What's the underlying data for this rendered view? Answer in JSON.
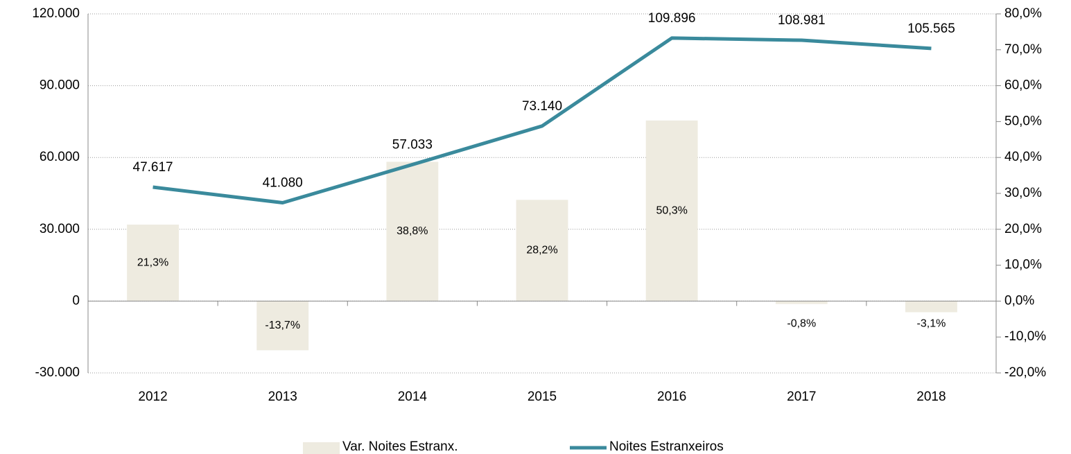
{
  "chart_data": {
    "type": "combo",
    "categories": [
      "2012",
      "2013",
      "2014",
      "2015",
      "2016",
      "2017",
      "2018"
    ],
    "series": [
      {
        "name": "Var. Noites Estranx.",
        "type": "bar",
        "axis": "y2",
        "color": "#eeebe0",
        "values": [
          21.3,
          -13.7,
          38.8,
          28.2,
          50.3,
          -0.8,
          -3.1
        ],
        "value_labels": [
          "21,3%",
          "-13,7%",
          "38,8%",
          "28,2%",
          "50,3%",
          "-0,8%",
          "-3,1%"
        ]
      },
      {
        "name": "Noites Estranxeiros",
        "type": "line",
        "axis": "y",
        "color": "#3a8a9c",
        "values": [
          47617,
          41080,
          57033,
          73140,
          109896,
          108981,
          105565
        ],
        "value_labels": [
          "47.617",
          "41.080",
          "57.033",
          "73.140",
          "109.896",
          "108.981",
          "105.565"
        ]
      }
    ],
    "ylim": [
      -30000,
      120000
    ],
    "yticks": [
      {
        "value": -30000,
        "label": "-30.000"
      },
      0,
      {
        "value": 30000,
        "label": "30.000"
      },
      {
        "value": 60000,
        "label": "60.000"
      },
      {
        "value": 90000,
        "label": "90.000"
      },
      {
        "value": 120000,
        "label": "120.000"
      }
    ],
    "y2lim": [
      -20,
      80
    ],
    "y2ticks": [
      {
        "value": -20,
        "label": "-20,0%"
      },
      {
        "value": -10,
        "label": "-10,0%"
      },
      {
        "value": 0,
        "label": "0,0%"
      },
      {
        "value": 10,
        "label": "10,0%"
      },
      {
        "value": 20,
        "label": "20,0%"
      },
      {
        "value": 30,
        "label": "30,0%"
      },
      {
        "value": 40,
        "label": "40,0%"
      },
      {
        "value": 50,
        "label": "50,0%"
      },
      {
        "value": 60,
        "label": "60,0%"
      },
      {
        "value": 70,
        "label": "70,0%"
      },
      {
        "value": 80,
        "label": "80,0%"
      }
    ],
    "grid": true,
    "legend": "bottom"
  }
}
